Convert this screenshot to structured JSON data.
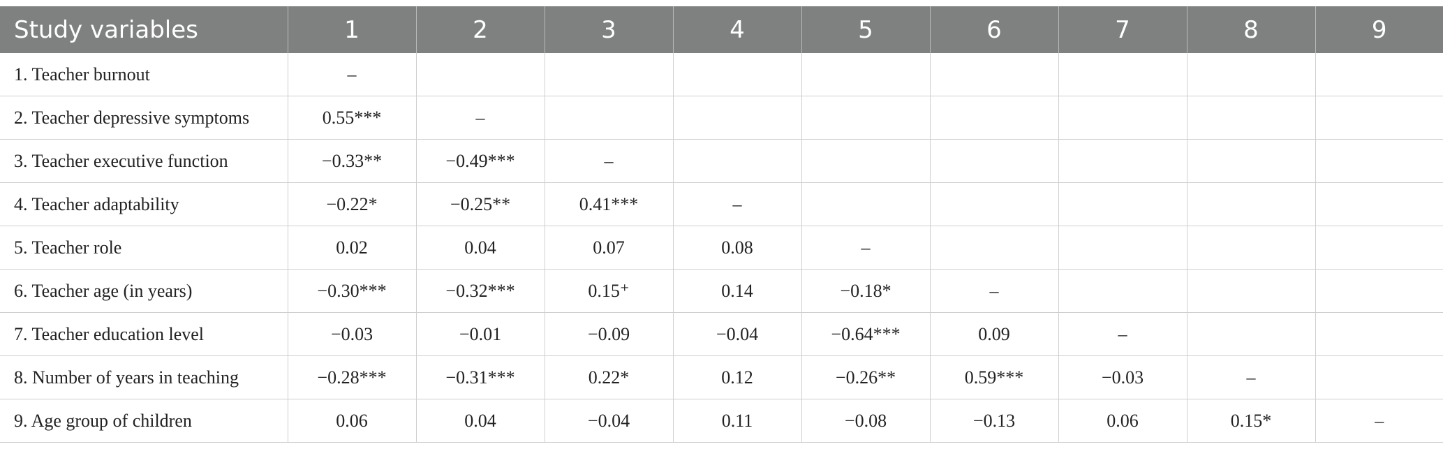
{
  "header": {
    "columns": [
      "Study variables",
      "1",
      "2",
      "3",
      "4",
      "5",
      "6",
      "7",
      "8",
      "9"
    ]
  },
  "rows": [
    {
      "label": "1. Teacher burnout",
      "cells": [
        "–",
        "",
        "",
        "",
        "",
        "",
        "",
        "",
        ""
      ]
    },
    {
      "label": "2. Teacher depressive symptoms",
      "cells": [
        "0.55***",
        "–",
        "",
        "",
        "",
        "",
        "",
        "",
        ""
      ]
    },
    {
      "label": "3. Teacher executive function",
      "cells": [
        "−0.33**",
        "−0.49***",
        "–",
        "",
        "",
        "",
        "",
        "",
        ""
      ]
    },
    {
      "label": "4. Teacher adaptability",
      "cells": [
        "−0.22*",
        "−0.25**",
        "0.41***",
        "–",
        "",
        "",
        "",
        "",
        ""
      ]
    },
    {
      "label": "5. Teacher role",
      "cells": [
        "0.02",
        "0.04",
        "0.07",
        "0.08",
        "–",
        "",
        "",
        "",
        ""
      ]
    },
    {
      "label": "6. Teacher age (in years)",
      "cells": [
        "−0.30***",
        "−0.32***",
        "0.15⁺",
        "0.14",
        "−0.18*",
        "–",
        "",
        "",
        ""
      ]
    },
    {
      "label": "7. Teacher education level",
      "cells": [
        "−0.03",
        "−0.01",
        "−0.09",
        "−0.04",
        "−0.64***",
        "0.09",
        "–",
        "",
        ""
      ]
    },
    {
      "label": "8. Number of years in teaching",
      "cells": [
        "−0.28***",
        "−0.31***",
        "0.22*",
        "0.12",
        "−0.26**",
        "0.59***",
        "−0.03",
        "–",
        ""
      ]
    },
    {
      "label": "9. Age group of children",
      "cells": [
        "0.06",
        "0.04",
        "−0.04",
        "0.11",
        "−0.08",
        "−0.13",
        "0.06",
        "0.15*",
        "–"
      ]
    }
  ]
}
